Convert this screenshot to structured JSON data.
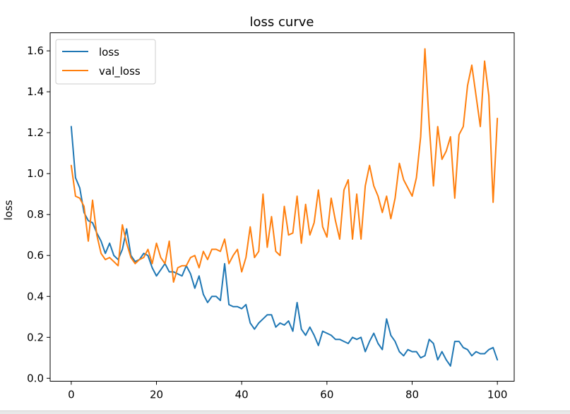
{
  "chart_data": {
    "type": "line",
    "title": "loss curve",
    "xlabel": "",
    "ylabel": "loss",
    "xlim": [
      -4.95,
      103.95
    ],
    "ylim": [
      -0.0144,
      1.6882
    ],
    "xticks": [
      "0",
      "20",
      "40",
      "60",
      "80",
      "100"
    ],
    "yticks": [
      "0.0",
      "0.2",
      "0.4",
      "0.6",
      "0.8",
      "1.0",
      "1.2",
      "1.4",
      "1.6"
    ],
    "grid": false,
    "legend_position": "top-left",
    "series": [
      {
        "name": "loss",
        "color": "#1f77b4",
        "values": [
          1.23,
          0.98,
          0.93,
          0.81,
          0.77,
          0.76,
          0.71,
          0.67,
          0.61,
          0.66,
          0.6,
          0.58,
          0.63,
          0.73,
          0.6,
          0.57,
          0.58,
          0.61,
          0.6,
          0.54,
          0.5,
          0.53,
          0.56,
          0.52,
          0.52,
          0.51,
          0.5,
          0.55,
          0.51,
          0.44,
          0.5,
          0.41,
          0.37,
          0.4,
          0.4,
          0.38,
          0.56,
          0.36,
          0.35,
          0.35,
          0.34,
          0.36,
          0.27,
          0.24,
          0.27,
          0.29,
          0.31,
          0.31,
          0.25,
          0.27,
          0.26,
          0.28,
          0.23,
          0.37,
          0.24,
          0.21,
          0.25,
          0.21,
          0.16,
          0.23,
          0.22,
          0.21,
          0.19,
          0.19,
          0.18,
          0.17,
          0.2,
          0.19,
          0.2,
          0.13,
          0.18,
          0.22,
          0.17,
          0.14,
          0.29,
          0.21,
          0.18,
          0.13,
          0.11,
          0.14,
          0.13,
          0.13,
          0.1,
          0.11,
          0.19,
          0.17,
          0.09,
          0.13,
          0.09,
          0.06,
          0.18,
          0.18,
          0.15,
          0.14,
          0.11,
          0.13,
          0.12,
          0.12,
          0.14,
          0.15,
          0.09
        ]
      },
      {
        "name": "val_loss",
        "color": "#ff7f0e",
        "values": [
          1.04,
          0.89,
          0.88,
          0.84,
          0.67,
          0.87,
          0.7,
          0.61,
          0.58,
          0.59,
          0.57,
          0.55,
          0.75,
          0.66,
          0.59,
          0.56,
          0.58,
          0.59,
          0.63,
          0.56,
          0.66,
          0.59,
          0.56,
          0.67,
          0.47,
          0.54,
          0.55,
          0.55,
          0.59,
          0.6,
          0.54,
          0.62,
          0.58,
          0.63,
          0.63,
          0.62,
          0.68,
          0.56,
          0.6,
          0.63,
          0.52,
          0.59,
          0.74,
          0.59,
          0.62,
          0.9,
          0.64,
          0.79,
          0.62,
          0.6,
          0.84,
          0.7,
          0.71,
          0.89,
          0.66,
          0.85,
          0.7,
          0.76,
          0.92,
          0.74,
          0.69,
          0.88,
          0.77,
          0.68,
          0.92,
          0.97,
          0.68,
          0.9,
          0.68,
          0.94,
          1.04,
          0.94,
          0.89,
          0.81,
          0.89,
          0.78,
          0.88,
          1.05,
          0.97,
          0.93,
          0.89,
          0.98,
          1.18,
          1.61,
          1.24,
          0.94,
          1.23,
          1.07,
          1.11,
          1.18,
          0.88,
          1.19,
          1.23,
          1.43,
          1.53,
          1.38,
          1.23,
          1.55,
          1.38,
          0.86,
          1.27
        ]
      }
    ]
  }
}
